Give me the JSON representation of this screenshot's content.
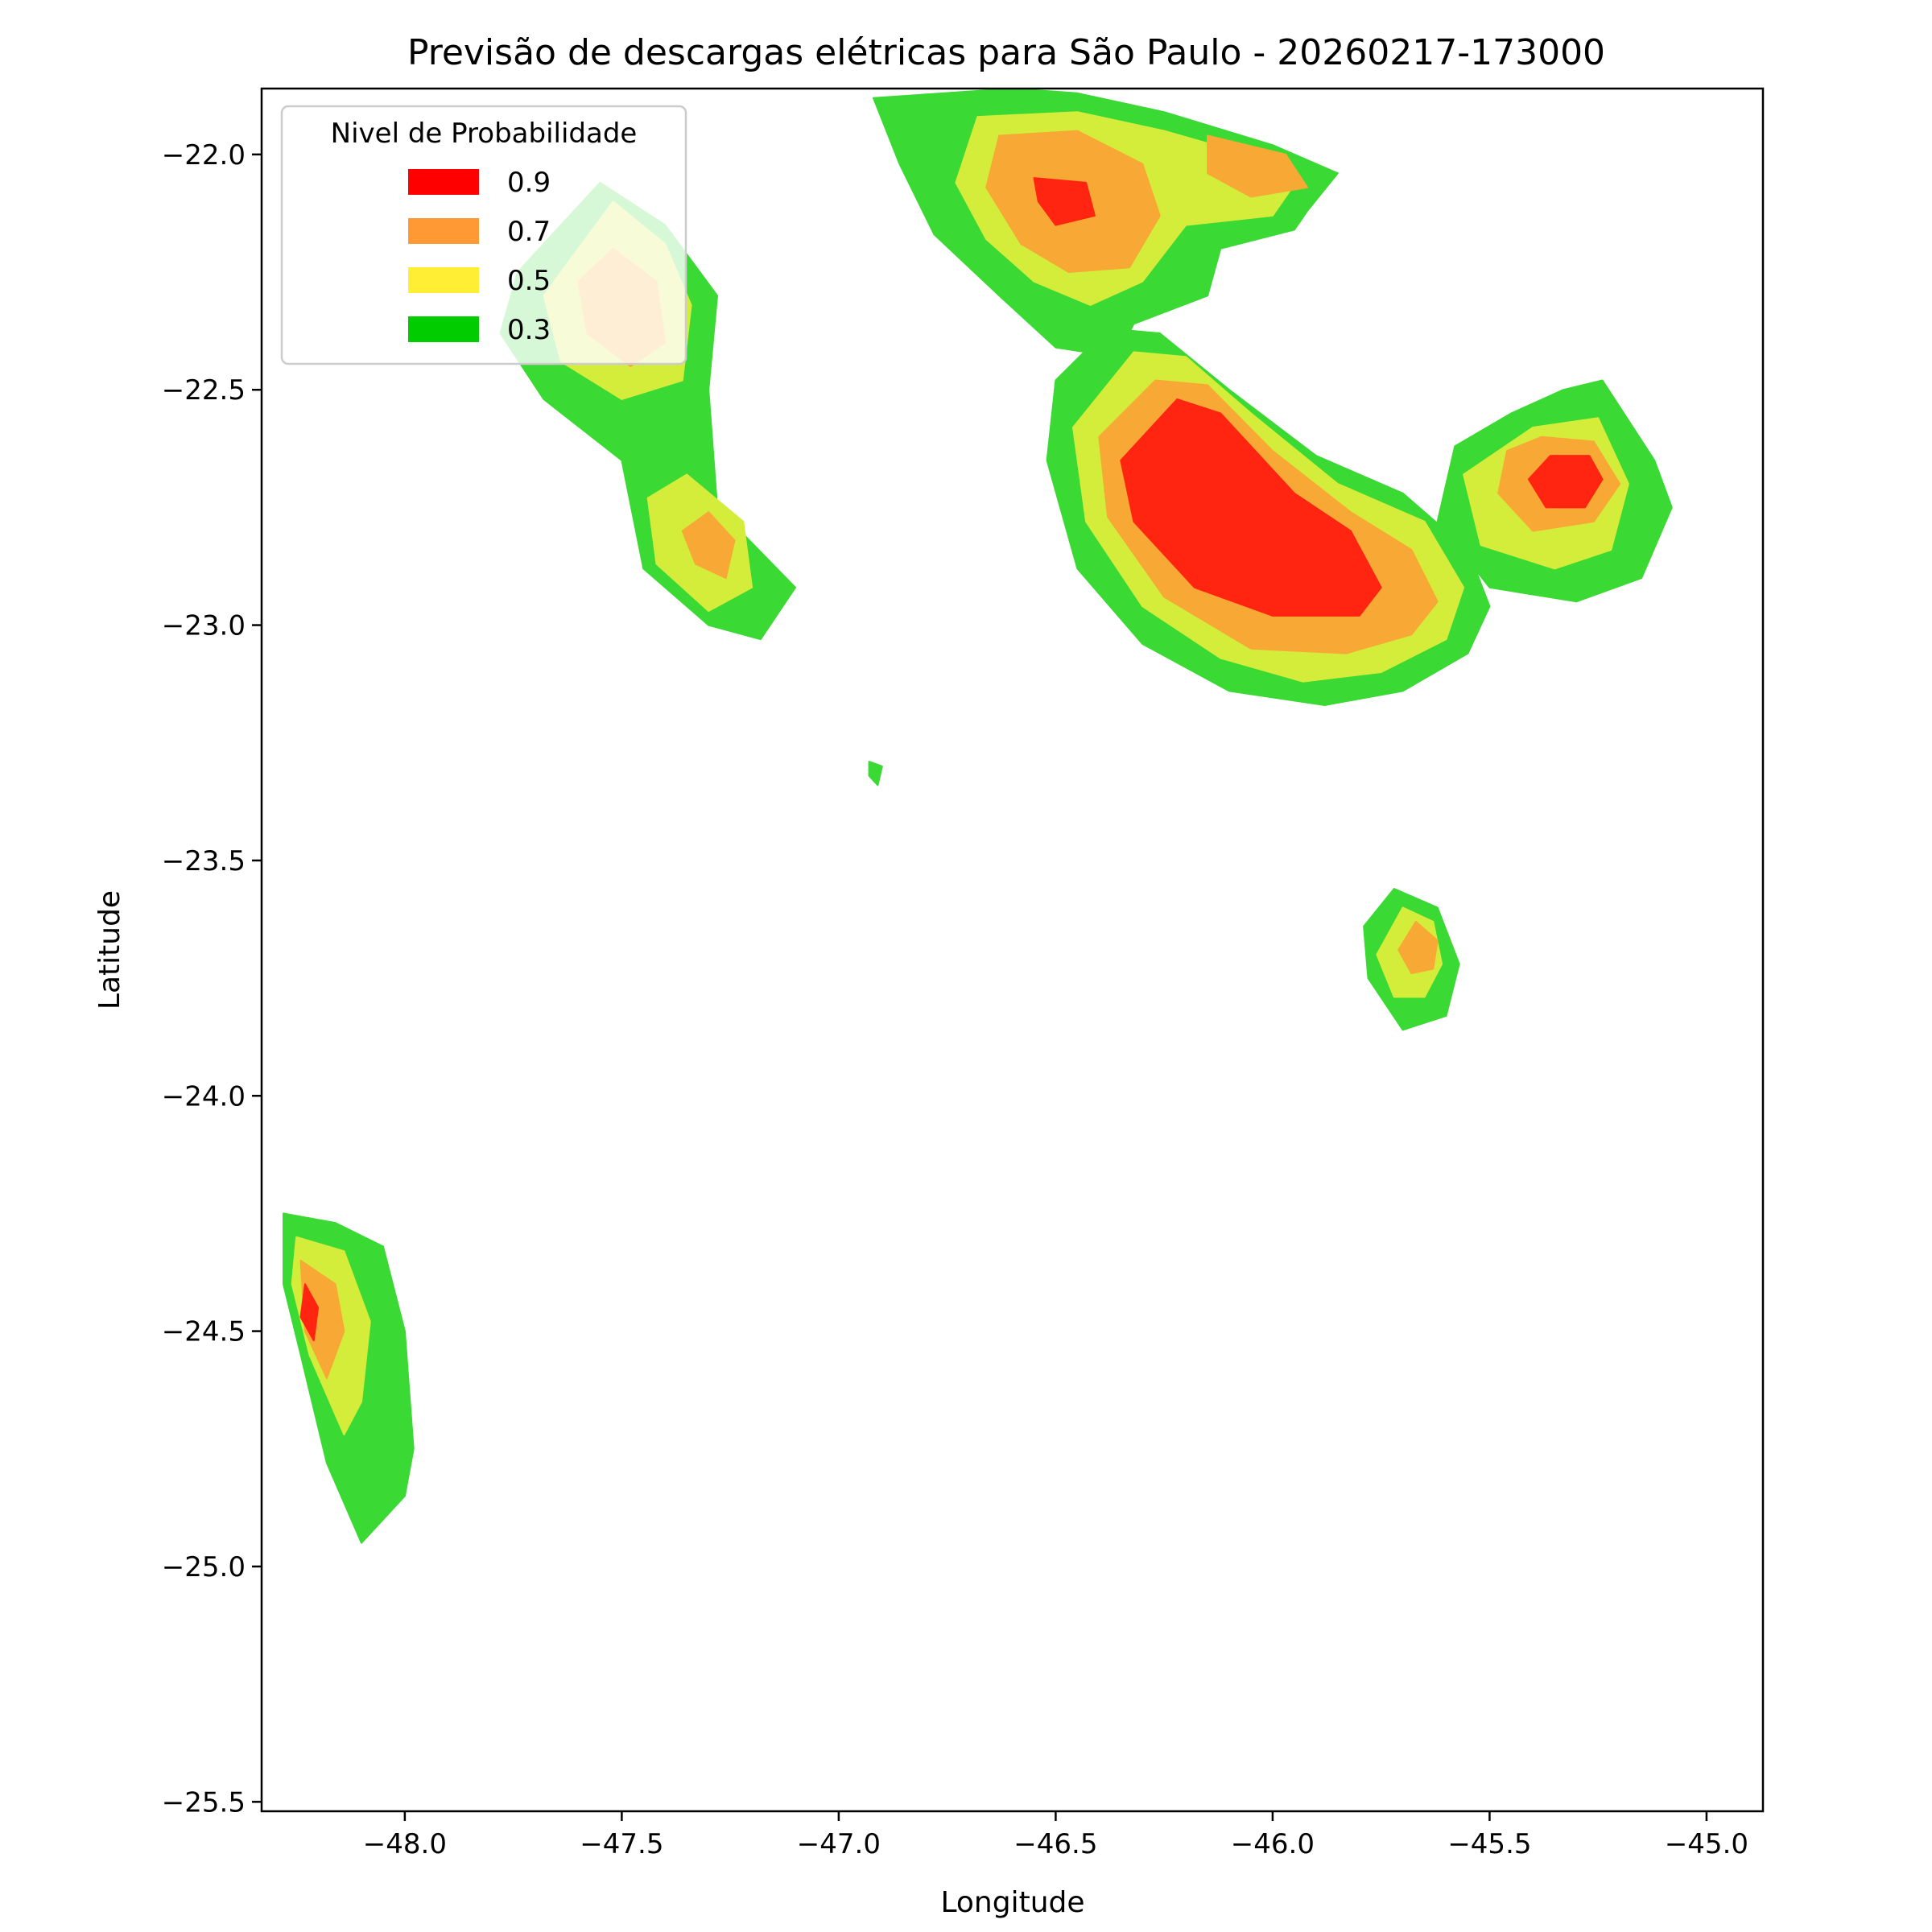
{
  "chart_data": {
    "type": "heatmap",
    "subtype": "filled-contour",
    "title": "Previsão de descargas elétricas para São Paulo - 20260217-173000",
    "xlabel": "Longitude",
    "ylabel": "Latitude",
    "xlim": [
      -48.33,
      -44.87
    ],
    "ylim": [
      -25.52,
      -21.86
    ],
    "xticks": [
      -48.0,
      -47.5,
      -47.0,
      -46.5,
      -46.0,
      -45.5,
      -45.0
    ],
    "yticks": [
      -22.0,
      -22.5,
      -23.0,
      -23.5,
      -24.0,
      -24.5,
      -25.0,
      -25.5
    ],
    "xtick_labels": [
      "−48.0",
      "−47.5",
      "−47.0",
      "−46.5",
      "−46.0",
      "−45.5",
      "−45.0"
    ],
    "ytick_labels": [
      "−22.0",
      "−22.5",
      "−23.0",
      "−23.5",
      "−24.0",
      "−24.5",
      "−25.0",
      "−25.5"
    ],
    "grid": false,
    "legend": {
      "title": "Nivel de Probabilidade",
      "placement": "top-left",
      "entries": [
        {
          "label": "0.9",
          "color": "#ff0000"
        },
        {
          "label": "0.7",
          "color": "#ff9933"
        },
        {
          "label": "0.5",
          "color": "#ffee33"
        },
        {
          "label": "0.3",
          "color": "#00cc00"
        }
      ]
    },
    "level_colors": {
      "0.3": "#3ad934",
      "0.5": "#d4ec3a",
      "0.7": "#f8a935",
      "0.9": "#ff2510"
    },
    "cells": [
      {
        "name": "cell-campinas-north",
        "levels": {
          "0.3": [
            [
              -46.92,
              -21.88
            ],
            [
              -46.6,
              -21.86
            ],
            [
              -46.45,
              -21.87
            ],
            [
              -46.25,
              -21.91
            ],
            [
              -46.0,
              -21.98
            ],
            [
              -45.85,
              -22.04
            ],
            [
              -45.92,
              -22.12
            ],
            [
              -45.95,
              -22.16
            ],
            [
              -46.12,
              -22.2
            ],
            [
              -46.15,
              -22.3
            ],
            [
              -46.32,
              -22.36
            ],
            [
              -46.36,
              -22.43
            ],
            [
              -46.5,
              -22.41
            ],
            [
              -46.63,
              -22.3
            ],
            [
              -46.78,
              -22.17
            ],
            [
              -46.86,
              -22.02
            ]
          ],
          "0.5": [
            [
              -46.68,
              -21.92
            ],
            [
              -46.45,
              -21.91
            ],
            [
              -46.25,
              -21.95
            ],
            [
              -46.06,
              -22.0
            ],
            [
              -45.94,
              -22.05
            ],
            [
              -46.0,
              -22.13
            ],
            [
              -46.2,
              -22.15
            ],
            [
              -46.3,
              -22.27
            ],
            [
              -46.42,
              -22.32
            ],
            [
              -46.55,
              -22.27
            ],
            [
              -46.66,
              -22.18
            ],
            [
              -46.73,
              -22.06
            ]
          ],
          "0.7": [
            [
              -46.63,
              -21.96
            ],
            [
              -46.45,
              -21.95
            ],
            [
              -46.3,
              -22.02
            ],
            [
              -46.26,
              -22.13
            ],
            [
              -46.33,
              -22.24
            ],
            [
              -46.47,
              -22.25
            ],
            [
              -46.58,
              -22.19
            ],
            [
              -46.66,
              -22.07
            ]
          ],
          "0.9": [
            [
              -46.55,
              -22.05
            ],
            [
              -46.43,
              -22.06
            ],
            [
              -46.41,
              -22.13
            ],
            [
              -46.5,
              -22.15
            ],
            [
              -46.54,
              -22.1
            ]
          ]
        }
      },
      {
        "name": "cell-campinas-northeast",
        "levels": {
          "0.7": [
            [
              -46.15,
              -21.96
            ],
            [
              -45.97,
              -22.0
            ],
            [
              -45.92,
              -22.07
            ],
            [
              -46.05,
              -22.09
            ],
            [
              -46.15,
              -22.04
            ]
          ]
        }
      },
      {
        "name": "cell-sao-paulo",
        "levels": {
          "0.3": [
            [
              -46.38,
              -22.37
            ],
            [
              -46.26,
              -22.38
            ],
            [
              -46.1,
              -22.5
            ],
            [
              -45.9,
              -22.64
            ],
            [
              -45.7,
              -22.72
            ],
            [
              -45.55,
              -22.84
            ],
            [
              -45.5,
              -22.96
            ],
            [
              -45.55,
              -23.06
            ],
            [
              -45.7,
              -23.14
            ],
            [
              -45.88,
              -23.17
            ],
            [
              -46.1,
              -23.14
            ],
            [
              -46.3,
              -23.04
            ],
            [
              -46.45,
              -22.88
            ],
            [
              -46.52,
              -22.65
            ],
            [
              -46.5,
              -22.48
            ]
          ],
          "0.5": [
            [
              -46.32,
              -22.42
            ],
            [
              -46.2,
              -22.43
            ],
            [
              -46.05,
              -22.55
            ],
            [
              -45.85,
              -22.7
            ],
            [
              -45.65,
              -22.78
            ],
            [
              -45.56,
              -22.92
            ],
            [
              -45.6,
              -23.03
            ],
            [
              -45.75,
              -23.1
            ],
            [
              -45.93,
              -23.12
            ],
            [
              -46.12,
              -23.07
            ],
            [
              -46.3,
              -22.96
            ],
            [
              -46.43,
              -22.78
            ],
            [
              -46.46,
              -22.58
            ]
          ],
          "0.7": [
            [
              -46.27,
              -22.48
            ],
            [
              -46.15,
              -22.49
            ],
            [
              -46.0,
              -22.63
            ],
            [
              -45.82,
              -22.76
            ],
            [
              -45.68,
              -22.84
            ],
            [
              -45.62,
              -22.95
            ],
            [
              -45.68,
              -23.02
            ],
            [
              -45.83,
              -23.06
            ],
            [
              -46.05,
              -23.05
            ],
            [
              -46.25,
              -22.94
            ],
            [
              -46.38,
              -22.77
            ],
            [
              -46.4,
              -22.6
            ]
          ],
          "0.9": [
            [
              -46.22,
              -22.52
            ],
            [
              -46.12,
              -22.55
            ],
            [
              -45.95,
              -22.72
            ],
            [
              -45.82,
              -22.8
            ],
            [
              -45.75,
              -22.92
            ],
            [
              -45.8,
              -22.98
            ],
            [
              -46.0,
              -22.98
            ],
            [
              -46.18,
              -22.92
            ],
            [
              -46.32,
              -22.78
            ],
            [
              -46.35,
              -22.65
            ]
          ]
        }
      },
      {
        "name": "cell-sao-jose",
        "levels": {
          "0.3": [
            [
              -45.45,
              -22.55
            ],
            [
              -45.33,
              -22.5
            ],
            [
              -45.24,
              -22.48
            ],
            [
              -45.12,
              -22.65
            ],
            [
              -45.08,
              -22.75
            ],
            [
              -45.15,
              -22.9
            ],
            [
              -45.3,
              -22.95
            ],
            [
              -45.5,
              -22.92
            ],
            [
              -45.62,
              -22.78
            ],
            [
              -45.58,
              -22.62
            ]
          ],
          "0.5": [
            [
              -45.4,
              -22.58
            ],
            [
              -45.25,
              -22.56
            ],
            [
              -45.18,
              -22.7
            ],
            [
              -45.22,
              -22.84
            ],
            [
              -45.35,
              -22.88
            ],
            [
              -45.52,
              -22.83
            ],
            [
              -45.56,
              -22.68
            ]
          ],
          "0.7": [
            [
              -45.38,
              -22.6
            ],
            [
              -45.26,
              -22.61
            ],
            [
              -45.2,
              -22.7
            ],
            [
              -45.26,
              -22.78
            ],
            [
              -45.4,
              -22.8
            ],
            [
              -45.48,
              -22.72
            ],
            [
              -45.46,
              -22.63
            ]
          ],
          "0.9": [
            [
              -45.36,
              -22.64
            ],
            [
              -45.27,
              -22.64
            ],
            [
              -45.24,
              -22.69
            ],
            [
              -45.28,
              -22.75
            ],
            [
              -45.37,
              -22.75
            ],
            [
              -45.41,
              -22.69
            ]
          ]
        }
      },
      {
        "name": "cell-northwest",
        "levels": {
          "0.3": [
            [
              -47.55,
              -22.06
            ],
            [
              -47.4,
              -22.15
            ],
            [
              -47.28,
              -22.3
            ],
            [
              -47.3,
              -22.5
            ],
            [
              -47.28,
              -22.75
            ],
            [
              -47.1,
              -22.92
            ],
            [
              -47.18,
              -23.03
            ],
            [
              -47.3,
              -23.0
            ],
            [
              -47.45,
              -22.88
            ],
            [
              -47.5,
              -22.65
            ],
            [
              -47.68,
              -22.52
            ],
            [
              -47.78,
              -22.38
            ],
            [
              -47.74,
              -22.25
            ]
          ],
          "0.5": [
            [
              -47.52,
              -22.1
            ],
            [
              -47.4,
              -22.19
            ],
            [
              -47.34,
              -22.32
            ],
            [
              -47.36,
              -22.48
            ],
            [
              -47.5,
              -22.52
            ],
            [
              -47.64,
              -22.44
            ],
            [
              -47.68,
              -22.3
            ]
          ],
          "0.5b": [
            [
              -47.35,
              -22.68
            ],
            [
              -47.22,
              -22.78
            ],
            [
              -47.2,
              -22.92
            ],
            [
              -47.3,
              -22.97
            ],
            [
              -47.42,
              -22.87
            ],
            [
              -47.44,
              -22.73
            ]
          ],
          "0.7": [
            [
              -47.52,
              -22.2
            ],
            [
              -47.42,
              -22.27
            ],
            [
              -47.4,
              -22.4
            ],
            [
              -47.48,
              -22.45
            ],
            [
              -47.58,
              -22.38
            ],
            [
              -47.6,
              -22.27
            ]
          ],
          "0.7b": [
            [
              -47.3,
              -22.76
            ],
            [
              -47.24,
              -22.82
            ],
            [
              -47.26,
              -22.9
            ],
            [
              -47.33,
              -22.87
            ],
            [
              -47.36,
              -22.8
            ]
          ]
        }
      },
      {
        "name": "cell-southeast",
        "levels": {
          "0.3": [
            [
              -45.72,
              -23.56
            ],
            [
              -45.62,
              -23.6
            ],
            [
              -45.57,
              -23.72
            ],
            [
              -45.6,
              -23.83
            ],
            [
              -45.7,
              -23.86
            ],
            [
              -45.78,
              -23.75
            ],
            [
              -45.79,
              -23.64
            ]
          ],
          "0.5": [
            [
              -45.7,
              -23.6
            ],
            [
              -45.63,
              -23.63
            ],
            [
              -45.61,
              -23.72
            ],
            [
              -45.65,
              -23.79
            ],
            [
              -45.72,
              -23.79
            ],
            [
              -45.76,
              -23.7
            ]
          ],
          "0.7": [
            [
              -45.67,
              -23.63
            ],
            [
              -45.62,
              -23.67
            ],
            [
              -45.63,
              -23.73
            ],
            [
              -45.68,
              -23.74
            ],
            [
              -45.71,
              -23.69
            ]
          ]
        }
      },
      {
        "name": "cell-southwest",
        "levels": {
          "0.3": [
            [
              -48.28,
              -24.25
            ],
            [
              -48.16,
              -24.27
            ],
            [
              -48.05,
              -24.32
            ],
            [
              -48.0,
              -24.5
            ],
            [
              -47.98,
              -24.75
            ],
            [
              -48.0,
              -24.85
            ],
            [
              -48.1,
              -24.95
            ],
            [
              -48.18,
              -24.78
            ],
            [
              -48.24,
              -24.55
            ],
            [
              -48.28,
              -24.4
            ]
          ],
          "0.5": [
            [
              -48.25,
              -24.3
            ],
            [
              -48.14,
              -24.33
            ],
            [
              -48.08,
              -24.48
            ],
            [
              -48.1,
              -24.65
            ],
            [
              -48.14,
              -24.72
            ],
            [
              -48.22,
              -24.55
            ],
            [
              -48.26,
              -24.4
            ]
          ],
          "0.7": [
            [
              -48.24,
              -24.35
            ],
            [
              -48.16,
              -24.4
            ],
            [
              -48.14,
              -24.5
            ],
            [
              -48.18,
              -24.6
            ],
            [
              -48.23,
              -24.5
            ]
          ],
          "0.9": [
            [
              -48.23,
              -24.4
            ],
            [
              -48.2,
              -24.45
            ],
            [
              -48.21,
              -24.52
            ],
            [
              -48.24,
              -24.47
            ]
          ]
        }
      },
      {
        "name": "cell-tiny-center",
        "levels": {
          "0.3": [
            [
              -46.93,
              -23.29
            ],
            [
              -46.9,
              -23.3
            ],
            [
              -46.91,
              -23.34
            ],
            [
              -46.93,
              -23.32
            ]
          ]
        }
      }
    ]
  }
}
